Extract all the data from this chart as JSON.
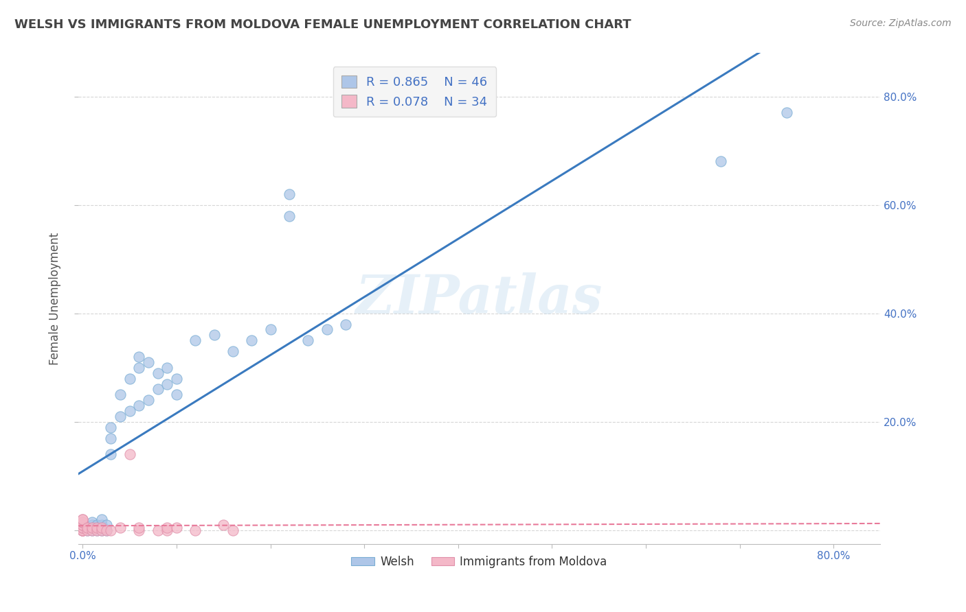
{
  "title": "WELSH VS IMMIGRANTS FROM MOLDOVA FEMALE UNEMPLOYMENT CORRELATION CHART",
  "source": "Source: ZipAtlas.com",
  "ylabel": "Female Unemployment",
  "watermark": "ZIPatlas",
  "background_color": "#ffffff",
  "plot_bg_color": "#ffffff",
  "grid_color": "#cccccc",
  "xmin": -0.005,
  "xmax": 0.85,
  "ymin": -0.025,
  "ymax": 0.88,
  "xtick_positions": [
    0.0,
    0.1,
    0.2,
    0.3,
    0.4,
    0.5,
    0.6,
    0.7,
    0.8
  ],
  "ytick_positions": [
    0.0,
    0.2,
    0.4,
    0.6,
    0.8
  ],
  "welsh_R": 0.865,
  "welsh_N": 46,
  "moldova_R": 0.078,
  "moldova_N": 34,
  "welsh_color": "#aec6e8",
  "welsh_edge_color": "#7aaed4",
  "welsh_line_color": "#3a7abf",
  "moldova_color": "#f4b8c8",
  "moldova_edge_color": "#e090aa",
  "moldova_line_color": "#e87a9a",
  "welsh_scatter_x": [
    0.0,
    0.0,
    0.0,
    0.005,
    0.005,
    0.01,
    0.01,
    0.01,
    0.01,
    0.015,
    0.015,
    0.02,
    0.02,
    0.02,
    0.025,
    0.025,
    0.03,
    0.03,
    0.03,
    0.04,
    0.04,
    0.05,
    0.05,
    0.06,
    0.06,
    0.06,
    0.07,
    0.07,
    0.08,
    0.08,
    0.09,
    0.09,
    0.1,
    0.1,
    0.12,
    0.14,
    0.16,
    0.18,
    0.2,
    0.22,
    0.22,
    0.24,
    0.26,
    0.28,
    0.68,
    0.75
  ],
  "welsh_scatter_y": [
    0.0,
    0.005,
    0.01,
    0.0,
    0.005,
    0.0,
    0.005,
    0.01,
    0.015,
    0.0,
    0.01,
    0.0,
    0.01,
    0.02,
    0.0,
    0.01,
    0.14,
    0.17,
    0.19,
    0.21,
    0.25,
    0.22,
    0.28,
    0.23,
    0.3,
    0.32,
    0.24,
    0.31,
    0.26,
    0.29,
    0.27,
    0.3,
    0.25,
    0.28,
    0.35,
    0.36,
    0.33,
    0.35,
    0.37,
    0.58,
    0.62,
    0.35,
    0.37,
    0.38,
    0.68,
    0.77
  ],
  "moldova_scatter_x": [
    0.0,
    0.0,
    0.0,
    0.0,
    0.0,
    0.0,
    0.0,
    0.0,
    0.0,
    0.0,
    0.0,
    0.0,
    0.0,
    0.005,
    0.005,
    0.01,
    0.01,
    0.015,
    0.015,
    0.02,
    0.02,
    0.025,
    0.03,
    0.04,
    0.05,
    0.06,
    0.06,
    0.08,
    0.09,
    0.09,
    0.1,
    0.12,
    0.15,
    0.16
  ],
  "moldova_scatter_y": [
    0.0,
    0.0,
    0.0,
    0.0,
    0.0,
    0.005,
    0.005,
    0.01,
    0.01,
    0.015,
    0.015,
    0.02,
    0.02,
    0.0,
    0.005,
    0.0,
    0.005,
    0.0,
    0.005,
    0.0,
    0.005,
    0.0,
    0.0,
    0.005,
    0.14,
    0.0,
    0.005,
    0.0,
    0.0,
    0.005,
    0.005,
    0.0,
    0.01,
    0.0
  ],
  "legend_box_color": "#f5f5f5",
  "legend_border_color": "#dddddd",
  "title_color": "#444444",
  "axis_label_color": "#555555",
  "tick_label_color": "#4472c4",
  "source_color": "#888888"
}
